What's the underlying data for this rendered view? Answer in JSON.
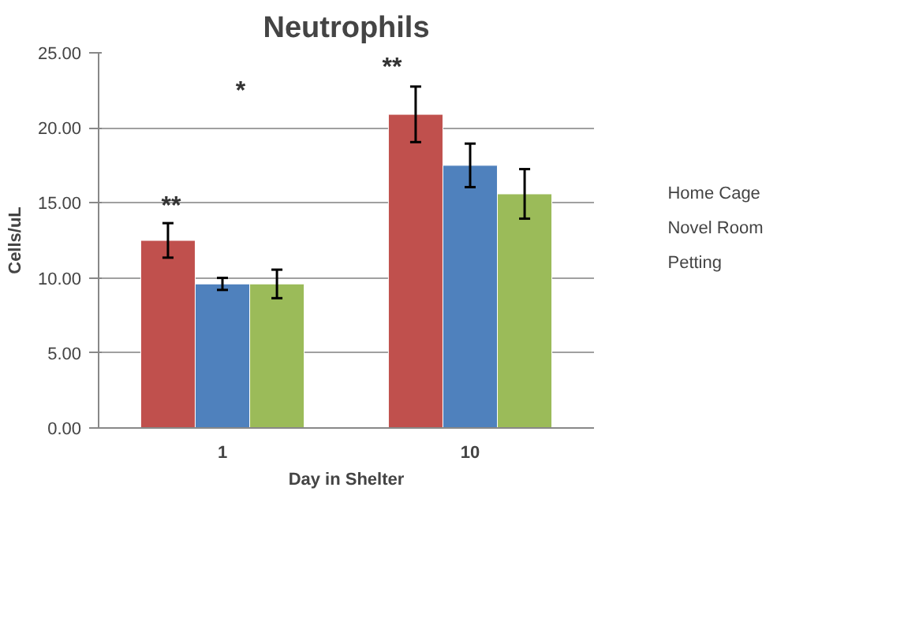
{
  "chart_data": {
    "type": "bar",
    "title": "Neutrophils",
    "xlabel": "Day in Shelter",
    "ylabel": "Cells/uL",
    "categories": [
      "1",
      "10"
    ],
    "series": [
      {
        "name": "Home Cage",
        "color": "#c0504d",
        "values": [
          12.5,
          20.9
        ],
        "errors": [
          1.15,
          1.85
        ]
      },
      {
        "name": "Novel Room",
        "color": "#4f81bd",
        "values": [
          9.6,
          17.5
        ],
        "errors": [
          0.4,
          1.45
        ]
      },
      {
        "name": "Petting",
        "color": "#9bbb59",
        "values": [
          9.6,
          15.6
        ],
        "errors": [
          0.95,
          1.65
        ]
      }
    ],
    "ylim": [
      0,
      25
    ],
    "yticks": [
      {
        "value": 0,
        "label": "0.00"
      },
      {
        "value": 5,
        "label": "5.00"
      },
      {
        "value": 10,
        "label": "10.00"
      },
      {
        "value": 15,
        "label": "15.00"
      },
      {
        "value": 20,
        "label": "20.00"
      },
      {
        "value": 25,
        "label": "25.00"
      }
    ],
    "grid": "y",
    "legend": "right",
    "annotations": [
      "**",
      "*",
      "**"
    ]
  }
}
